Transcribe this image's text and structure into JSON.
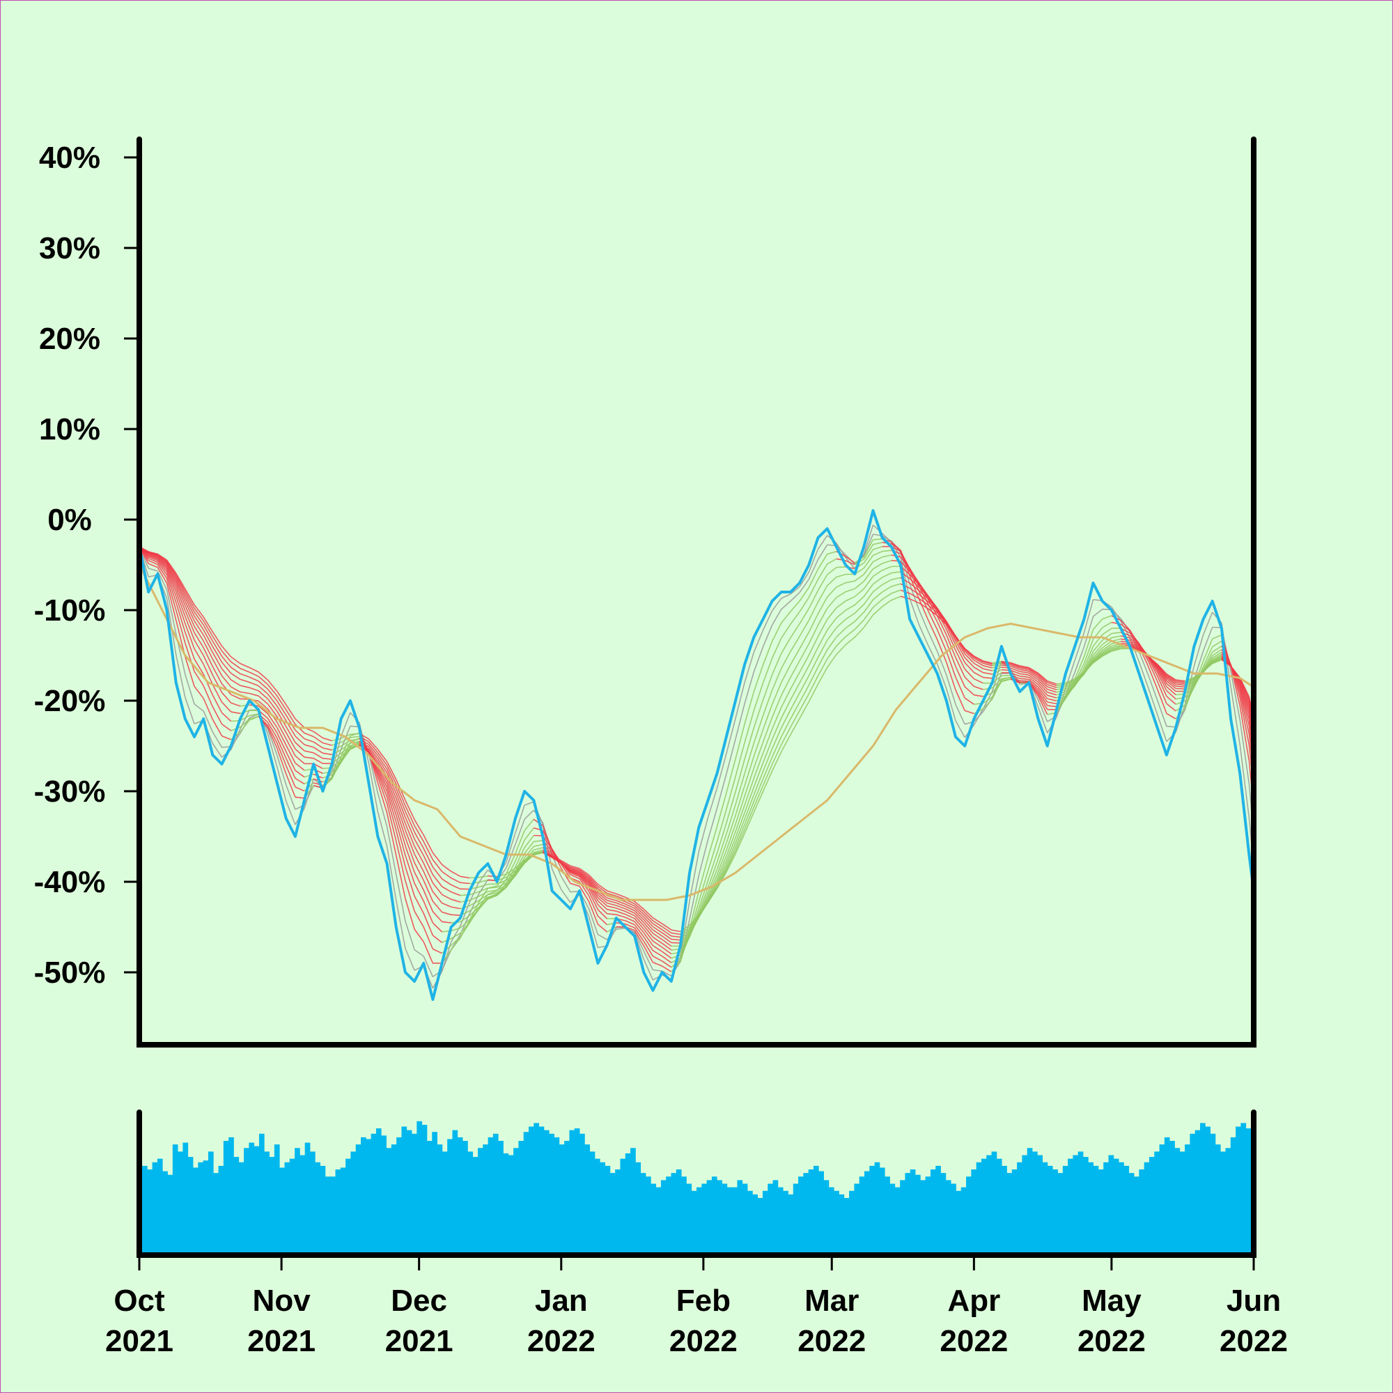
{
  "chart_data": {
    "type": "line",
    "title": "",
    "xlabel": "",
    "ylabel": "",
    "x_range": [
      "2021-10-01",
      "2022-06-01"
    ],
    "ylim": [
      -58,
      42
    ],
    "y_ticks": [
      "40%",
      "30%",
      "20%",
      "10%",
      "0%",
      "-10%",
      "-20%",
      "-30%",
      "-40%",
      "-50%"
    ],
    "y_tick_values": [
      40,
      30,
      20,
      10,
      0,
      -10,
      -20,
      -30,
      -40,
      -50
    ],
    "x_ticks": [
      {
        "month": "Oct",
        "year": "2021",
        "date": "2021-10-01"
      },
      {
        "month": "Nov",
        "year": "2021",
        "date": "2021-11-01"
      },
      {
        "month": "Dec",
        "year": "2021",
        "date": "2021-12-01"
      },
      {
        "month": "Jan",
        "year": "2022",
        "date": "2022-01-01"
      },
      {
        "month": "Feb",
        "year": "2022",
        "date": "2022-02-01"
      },
      {
        "month": "Mar",
        "year": "2022",
        "date": "2022-03-01"
      },
      {
        "month": "Apr",
        "year": "2022",
        "date": "2022-04-01"
      },
      {
        "month": "May",
        "year": "2022",
        "date": "2022-05-01"
      },
      {
        "month": "Jun",
        "year": "2022",
        "date": "2022-06-01"
      }
    ],
    "grid": false,
    "legend": "none",
    "series": [
      {
        "role": "price",
        "color": "#1fb3e6",
        "points": [
          [
            "2021-10-01",
            -3
          ],
          [
            "2021-10-03",
            -8
          ],
          [
            "2021-10-05",
            -6
          ],
          [
            "2021-10-07",
            -10
          ],
          [
            "2021-10-09",
            -18
          ],
          [
            "2021-10-11",
            -22
          ],
          [
            "2021-10-13",
            -24
          ],
          [
            "2021-10-15",
            -22
          ],
          [
            "2021-10-17",
            -26
          ],
          [
            "2021-10-19",
            -27
          ],
          [
            "2021-10-21",
            -25
          ],
          [
            "2021-10-23",
            -22
          ],
          [
            "2021-10-25",
            -20
          ],
          [
            "2021-10-27",
            -21
          ],
          [
            "2021-10-29",
            -25
          ],
          [
            "2021-10-31",
            -29
          ],
          [
            "2021-11-02",
            -33
          ],
          [
            "2021-11-04",
            -35
          ],
          [
            "2021-11-06",
            -31
          ],
          [
            "2021-11-08",
            -27
          ],
          [
            "2021-11-10",
            -30
          ],
          [
            "2021-11-12",
            -27
          ],
          [
            "2021-11-14",
            -22
          ],
          [
            "2021-11-16",
            -20
          ],
          [
            "2021-11-18",
            -23
          ],
          [
            "2021-11-20",
            -29
          ],
          [
            "2021-11-22",
            -35
          ],
          [
            "2021-11-24",
            -38
          ],
          [
            "2021-11-26",
            -45
          ],
          [
            "2021-11-28",
            -50
          ],
          [
            "2021-11-30",
            -51
          ],
          [
            "2021-12-02",
            -49
          ],
          [
            "2021-12-04",
            -53
          ],
          [
            "2021-12-06",
            -49
          ],
          [
            "2021-12-08",
            -45
          ],
          [
            "2021-12-10",
            -44
          ],
          [
            "2021-12-12",
            -41
          ],
          [
            "2021-12-14",
            -39
          ],
          [
            "2021-12-16",
            -38
          ],
          [
            "2021-12-18",
            -40
          ],
          [
            "2021-12-20",
            -37
          ],
          [
            "2021-12-22",
            -33
          ],
          [
            "2021-12-24",
            -30
          ],
          [
            "2021-12-26",
            -31
          ],
          [
            "2021-12-28",
            -35
          ],
          [
            "2021-12-30",
            -41
          ],
          [
            "2022-01-01",
            -42
          ],
          [
            "2022-01-03",
            -43
          ],
          [
            "2022-01-05",
            -41
          ],
          [
            "2022-01-07",
            -45
          ],
          [
            "2022-01-09",
            -49
          ],
          [
            "2022-01-11",
            -47
          ],
          [
            "2022-01-13",
            -44
          ],
          [
            "2022-01-15",
            -45
          ],
          [
            "2022-01-17",
            -46
          ],
          [
            "2022-01-19",
            -50
          ],
          [
            "2022-01-21",
            -52
          ],
          [
            "2022-01-23",
            -50
          ],
          [
            "2022-01-25",
            -51
          ],
          [
            "2022-01-27",
            -47
          ],
          [
            "2022-01-29",
            -39
          ],
          [
            "2022-01-31",
            -34
          ],
          [
            "2022-02-02",
            -31
          ],
          [
            "2022-02-04",
            -28
          ],
          [
            "2022-02-06",
            -24
          ],
          [
            "2022-02-08",
            -20
          ],
          [
            "2022-02-10",
            -16
          ],
          [
            "2022-02-12",
            -13
          ],
          [
            "2022-02-14",
            -11
          ],
          [
            "2022-02-16",
            -9
          ],
          [
            "2022-02-18",
            -8
          ],
          [
            "2022-02-20",
            -8
          ],
          [
            "2022-02-22",
            -7
          ],
          [
            "2022-02-24",
            -5
          ],
          [
            "2022-02-26",
            -2
          ],
          [
            "2022-02-28",
            -1
          ],
          [
            "2022-03-02",
            -3
          ],
          [
            "2022-03-04",
            -5
          ],
          [
            "2022-03-06",
            -6
          ],
          [
            "2022-03-08",
            -3
          ],
          [
            "2022-03-10",
            1
          ],
          [
            "2022-03-12",
            -2
          ],
          [
            "2022-03-14",
            -3
          ],
          [
            "2022-03-16",
            -5
          ],
          [
            "2022-03-18",
            -11
          ],
          [
            "2022-03-20",
            -13
          ],
          [
            "2022-03-22",
            -15
          ],
          [
            "2022-03-24",
            -17
          ],
          [
            "2022-03-26",
            -20
          ],
          [
            "2022-03-28",
            -24
          ],
          [
            "2022-03-30",
            -25
          ],
          [
            "2022-04-01",
            -22
          ],
          [
            "2022-04-03",
            -20
          ],
          [
            "2022-04-05",
            -18
          ],
          [
            "2022-04-07",
            -14
          ],
          [
            "2022-04-09",
            -17
          ],
          [
            "2022-04-11",
            -19
          ],
          [
            "2022-04-13",
            -18
          ],
          [
            "2022-04-15",
            -22
          ],
          [
            "2022-04-17",
            -25
          ],
          [
            "2022-04-19",
            -21
          ],
          [
            "2022-04-21",
            -17
          ],
          [
            "2022-04-23",
            -14
          ],
          [
            "2022-04-25",
            -11
          ],
          [
            "2022-04-27",
            -7
          ],
          [
            "2022-04-29",
            -9
          ],
          [
            "2022-05-01",
            -10
          ],
          [
            "2022-05-03",
            -12
          ],
          [
            "2022-05-05",
            -14
          ],
          [
            "2022-05-07",
            -17
          ],
          [
            "2022-05-09",
            -20
          ],
          [
            "2022-05-11",
            -23
          ],
          [
            "2022-05-13",
            -26
          ],
          [
            "2022-05-15",
            -23
          ],
          [
            "2022-05-17",
            -19
          ],
          [
            "2022-05-19",
            -14
          ],
          [
            "2022-05-21",
            -11
          ],
          [
            "2022-05-23",
            -9
          ],
          [
            "2022-05-25",
            -12
          ],
          [
            "2022-05-27",
            -22
          ],
          [
            "2022-05-29",
            -28
          ],
          [
            "2022-05-31",
            -37
          ],
          [
            "2022-06-01",
            -41
          ]
        ]
      },
      {
        "role": "long moving average",
        "color": "#d9b86a",
        "points": [
          [
            "2021-10-01",
            -5
          ],
          [
            "2021-10-06",
            -10
          ],
          [
            "2021-10-11",
            -15
          ],
          [
            "2021-10-16",
            -18
          ],
          [
            "2021-10-21",
            -19
          ],
          [
            "2021-10-26",
            -20
          ],
          [
            "2021-10-31",
            -22
          ],
          [
            "2021-11-05",
            -23
          ],
          [
            "2021-11-10",
            -23
          ],
          [
            "2021-11-15",
            -24
          ],
          [
            "2021-11-20",
            -26
          ],
          [
            "2021-11-25",
            -29
          ],
          [
            "2021-11-30",
            -31
          ],
          [
            "2021-12-05",
            -32
          ],
          [
            "2021-12-10",
            -35
          ],
          [
            "2021-12-15",
            -36
          ],
          [
            "2021-12-20",
            -37
          ],
          [
            "2021-12-25",
            -37
          ],
          [
            "2021-12-30",
            -38
          ],
          [
            "2022-01-04",
            -40
          ],
          [
            "2022-01-09",
            -41
          ],
          [
            "2022-01-14",
            -42
          ],
          [
            "2022-01-19",
            -42
          ],
          [
            "2022-01-24",
            -42
          ],
          [
            "2022-01-29",
            -41.5
          ],
          [
            "2022-02-03",
            -40.5
          ],
          [
            "2022-02-08",
            -39
          ],
          [
            "2022-02-13",
            -37
          ],
          [
            "2022-02-18",
            -35
          ],
          [
            "2022-02-23",
            -33
          ],
          [
            "2022-02-28",
            -31
          ],
          [
            "2022-03-05",
            -28
          ],
          [
            "2022-03-10",
            -25
          ],
          [
            "2022-03-15",
            -21
          ],
          [
            "2022-03-20",
            -18
          ],
          [
            "2022-03-25",
            -15
          ],
          [
            "2022-03-30",
            -13
          ],
          [
            "2022-04-04",
            -12
          ],
          [
            "2022-04-09",
            -11.5
          ],
          [
            "2022-04-14",
            -12
          ],
          [
            "2022-04-19",
            -12.5
          ],
          [
            "2022-04-24",
            -13
          ],
          [
            "2022-04-29",
            -13
          ],
          [
            "2022-05-04",
            -14
          ],
          [
            "2022-05-09",
            -15
          ],
          [
            "2022-05-14",
            -16
          ],
          [
            "2022-05-19",
            -17
          ],
          [
            "2022-05-24",
            -17
          ],
          [
            "2022-05-29",
            -17.5
          ],
          [
            "2022-06-01",
            -18.5
          ]
        ]
      }
    ],
    "ribbon": {
      "description_colors": {
        "falling": "#f03a47",
        "rising": "#8fc860",
        "mid": "#999999",
        "edge": "#f08a30"
      },
      "line_count": 14
    },
    "volume": {
      "type": "bar",
      "color": "#00b8ee",
      "values": [
        50,
        48,
        52,
        54,
        47,
        45,
        62,
        58,
        63,
        55,
        49,
        52,
        53,
        58,
        46,
        50,
        64,
        66,
        55,
        52,
        60,
        63,
        61,
        68,
        58,
        55,
        62,
        49,
        52,
        54,
        60,
        56,
        63,
        58,
        52,
        50,
        44,
        44,
        48,
        49,
        54,
        58,
        62,
        66,
        65,
        68,
        71,
        67,
        60,
        62,
        66,
        72,
        70,
        68,
        75,
        73,
        64,
        69,
        62,
        58,
        65,
        70,
        66,
        64,
        58,
        55,
        60,
        62,
        66,
        68,
        64,
        57,
        56,
        60,
        64,
        69,
        72,
        74,
        72,
        70,
        68,
        66,
        62,
        64,
        70,
        71,
        68,
        62,
        58,
        54,
        52,
        50,
        46,
        48,
        54,
        57,
        60,
        52,
        46,
        44,
        40,
        38,
        42,
        44,
        46,
        48,
        44,
        40,
        36,
        38,
        40,
        42,
        44,
        42,
        40,
        38,
        38,
        42,
        40,
        36,
        34,
        32,
        36,
        40,
        42,
        38,
        36,
        34,
        40,
        44,
        46,
        48,
        50,
        47,
        42,
        38,
        36,
        34,
        32,
        36,
        40,
        44,
        47,
        50,
        52,
        49,
        44,
        40,
        38,
        42,
        46,
        48,
        45,
        42,
        44,
        48,
        50,
        46,
        42,
        40,
        36,
        38,
        44,
        48,
        52,
        54,
        56,
        58,
        54,
        50,
        46,
        48,
        52,
        56,
        60,
        58,
        56,
        52,
        50,
        48,
        46,
        50,
        54,
        56,
        58,
        55,
        52,
        50,
        48,
        52,
        56,
        54,
        52,
        50,
        46,
        44,
        48,
        52,
        55,
        58,
        62,
        66,
        64,
        60,
        58,
        62,
        68,
        70,
        74,
        72,
        68,
        62,
        58,
        60,
        66,
        72,
        74,
        71
      ],
      "ylim": [
        0,
        80
      ]
    }
  }
}
